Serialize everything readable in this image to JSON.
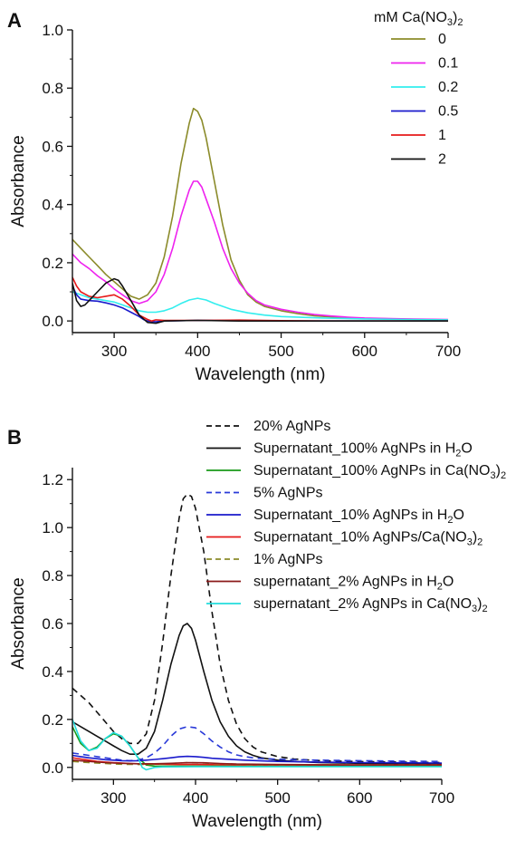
{
  "chart_data": [
    {
      "panel": "A",
      "type": "line",
      "xlabel": "Wavelength (nm)",
      "ylabel": "Absorbance",
      "xlim": [
        250,
        700
      ],
      "ylim": [
        -0.04,
        1.0
      ],
      "xticks": [
        300,
        400,
        500,
        600,
        700
      ],
      "yticks": [
        0.0,
        0.2,
        0.4,
        0.6,
        0.8,
        1.0
      ],
      "grid": false,
      "legend_title": "mM Ca(NO3)2",
      "legend_title_parts": {
        "pre": "mM Ca(NO",
        "sub": "3",
        "mid": ")",
        "sub2": "2",
        "post": ""
      },
      "legend_position": "top-right",
      "series": [
        {
          "name": "0",
          "color": "#8b8b2a",
          "dash": "solid",
          "x": [
            250,
            260,
            270,
            280,
            290,
            300,
            310,
            320,
            330,
            340,
            350,
            360,
            370,
            380,
            390,
            395,
            400,
            405,
            410,
            420,
            430,
            440,
            450,
            460,
            470,
            480,
            500,
            520,
            540,
            560,
            580,
            600,
            650,
            700
          ],
          "y": [
            0.28,
            0.25,
            0.22,
            0.19,
            0.16,
            0.135,
            0.11,
            0.085,
            0.075,
            0.09,
            0.13,
            0.22,
            0.36,
            0.54,
            0.68,
            0.73,
            0.72,
            0.69,
            0.63,
            0.48,
            0.33,
            0.21,
            0.14,
            0.09,
            0.065,
            0.05,
            0.035,
            0.025,
            0.018,
            0.014,
            0.011,
            0.009,
            0.006,
            0.004
          ]
        },
        {
          "name": "0.1",
          "color": "#ee22ee",
          "dash": "solid",
          "x": [
            250,
            260,
            270,
            280,
            290,
            300,
            310,
            320,
            330,
            340,
            350,
            360,
            370,
            380,
            390,
            395,
            400,
            405,
            410,
            420,
            430,
            440,
            450,
            460,
            470,
            480,
            500,
            520,
            540,
            560,
            580,
            600,
            650,
            700
          ],
          "y": [
            0.23,
            0.2,
            0.18,
            0.155,
            0.135,
            0.11,
            0.09,
            0.07,
            0.06,
            0.07,
            0.1,
            0.16,
            0.25,
            0.36,
            0.45,
            0.48,
            0.48,
            0.46,
            0.42,
            0.34,
            0.25,
            0.18,
            0.13,
            0.095,
            0.07,
            0.055,
            0.04,
            0.03,
            0.022,
            0.017,
            0.013,
            0.01,
            0.007,
            0.005
          ]
        },
        {
          "name": "0.2",
          "color": "#33eeee",
          "dash": "solid",
          "x": [
            250,
            260,
            270,
            280,
            290,
            300,
            310,
            320,
            330,
            340,
            350,
            360,
            370,
            380,
            390,
            400,
            410,
            420,
            440,
            460,
            480,
            500,
            550,
            600,
            650,
            700
          ],
          "y": [
            0.1,
            0.09,
            0.08,
            0.075,
            0.07,
            0.065,
            0.055,
            0.045,
            0.035,
            0.03,
            0.03,
            0.035,
            0.045,
            0.06,
            0.072,
            0.078,
            0.072,
            0.06,
            0.04,
            0.028,
            0.02,
            0.015,
            0.01,
            0.007,
            0.005,
            0.004
          ]
        },
        {
          "name": "0.5",
          "color": "#1a1acc",
          "dash": "solid",
          "x": [
            250,
            255,
            260,
            270,
            280,
            290,
            300,
            310,
            320,
            330,
            335,
            340,
            350,
            360,
            400,
            450,
            500,
            550,
            600,
            650,
            700
          ],
          "y": [
            0.12,
            0.09,
            0.075,
            0.07,
            0.068,
            0.062,
            0.055,
            0.045,
            0.03,
            0.015,
            0.005,
            0.0,
            -0.003,
            0.0,
            0.002,
            0.001,
            0.0,
            0.0,
            0.0,
            0.0,
            0.0
          ]
        },
        {
          "name": "1",
          "color": "#e61a1a",
          "dash": "solid",
          "x": [
            250,
            255,
            260,
            270,
            280,
            290,
            300,
            310,
            320,
            330,
            340,
            345,
            350,
            360,
            400,
            450,
            500,
            550,
            600,
            650,
            700
          ],
          "y": [
            0.15,
            0.12,
            0.1,
            0.085,
            0.08,
            0.085,
            0.09,
            0.075,
            0.05,
            0.02,
            0.005,
            0.0,
            0.004,
            0.002,
            0.002,
            0.003,
            0.001,
            0.0,
            0.0,
            0.0,
            0.0
          ]
        },
        {
          "name": "2",
          "color": "#111111",
          "dash": "solid",
          "x": [
            250,
            255,
            260,
            265,
            270,
            280,
            290,
            300,
            305,
            310,
            320,
            330,
            340,
            350,
            360,
            400,
            450,
            500,
            550,
            600,
            650,
            700
          ],
          "y": [
            0.13,
            0.07,
            0.05,
            0.055,
            0.07,
            0.1,
            0.13,
            0.145,
            0.14,
            0.12,
            0.07,
            0.02,
            -0.005,
            -0.008,
            0.0,
            0.002,
            0.0,
            0.0,
            0.0,
            0.0,
            0.0,
            0.0
          ]
        }
      ]
    },
    {
      "panel": "B",
      "type": "line",
      "xlabel": "Wavelength (nm)",
      "ylabel": "Absorbance",
      "xlim": [
        250,
        700
      ],
      "ylim": [
        -0.05,
        1.25
      ],
      "xticks": [
        300,
        400,
        500,
        600,
        700
      ],
      "yticks": [
        0.0,
        0.2,
        0.4,
        0.6,
        0.8,
        1.0,
        1.2
      ],
      "grid": false,
      "legend_position": "top-right",
      "series": [
        {
          "name": "20% AgNPs",
          "label_parts": {
            "pre": "20% AgNPs",
            "sub": "",
            "post": ""
          },
          "color": "#111111",
          "dash": "dashed",
          "x": [
            250,
            260,
            270,
            280,
            290,
            300,
            310,
            320,
            330,
            340,
            350,
            360,
            370,
            380,
            385,
            390,
            395,
            400,
            410,
            420,
            430,
            440,
            450,
            460,
            470,
            480,
            500,
            520,
            540,
            560,
            600,
            650,
            700
          ],
          "y": [
            0.33,
            0.3,
            0.27,
            0.23,
            0.19,
            0.15,
            0.12,
            0.1,
            0.1,
            0.14,
            0.28,
            0.52,
            0.8,
            1.04,
            1.12,
            1.14,
            1.13,
            1.08,
            0.9,
            0.65,
            0.43,
            0.28,
            0.18,
            0.12,
            0.085,
            0.065,
            0.045,
            0.035,
            0.03,
            0.027,
            0.024,
            0.022,
            0.02
          ]
        },
        {
          "name": "Supernatant_100% AgNPs in H2O",
          "label_parts": {
            "pre": "Supernatant_100% AgNPs in H",
            "sub": "2",
            "post": "O"
          },
          "color": "#111111",
          "dash": "solid",
          "x": [
            250,
            260,
            270,
            280,
            290,
            300,
            310,
            320,
            330,
            340,
            350,
            360,
            370,
            380,
            385,
            390,
            395,
            400,
            410,
            420,
            430,
            440,
            450,
            460,
            470,
            480,
            500,
            520,
            550,
            600,
            650,
            700
          ],
          "y": [
            0.19,
            0.17,
            0.15,
            0.13,
            0.11,
            0.09,
            0.07,
            0.055,
            0.055,
            0.08,
            0.15,
            0.28,
            0.43,
            0.55,
            0.59,
            0.6,
            0.58,
            0.53,
            0.4,
            0.28,
            0.19,
            0.13,
            0.09,
            0.065,
            0.05,
            0.04,
            0.03,
            0.025,
            0.02,
            0.017,
            0.015,
            0.014
          ]
        },
        {
          "name": "Supernatant_100% AgNPs in Ca(NO3)2",
          "label_parts": {
            "pre": "Supernatant_100% AgNPs in Ca(NO",
            "sub": "3",
            "mid": ")",
            "sub2": "2",
            "post": ""
          },
          "color": "#1a9a1a",
          "dash": "solid",
          "x": [
            250,
            260,
            270,
            280,
            290,
            300,
            310,
            320,
            330,
            340,
            350,
            400,
            450,
            500,
            550,
            600,
            650,
            700
          ],
          "y": [
            0.17,
            0.1,
            0.07,
            0.085,
            0.12,
            0.14,
            0.13,
            0.09,
            0.04,
            0.01,
            0.005,
            0.005,
            0.005,
            0.005,
            0.005,
            0.005,
            0.005,
            0.005
          ]
        },
        {
          "name": "5% AgNPs",
          "label_parts": {
            "pre": "5% AgNPs",
            "sub": "",
            "post": ""
          },
          "color": "#2a3ad8",
          "dash": "dashed",
          "x": [
            250,
            260,
            270,
            280,
            290,
            300,
            310,
            320,
            330,
            340,
            350,
            360,
            370,
            380,
            390,
            400,
            410,
            420,
            430,
            440,
            450,
            460,
            470,
            480,
            500,
            520,
            550,
            600,
            650,
            700
          ],
          "y": [
            0.06,
            0.055,
            0.05,
            0.045,
            0.04,
            0.035,
            0.03,
            0.028,
            0.03,
            0.04,
            0.06,
            0.09,
            0.13,
            0.16,
            0.17,
            0.165,
            0.14,
            0.11,
            0.085,
            0.065,
            0.052,
            0.045,
            0.04,
            0.037,
            0.034,
            0.032,
            0.03,
            0.028,
            0.026,
            0.025
          ]
        },
        {
          "name": "Supernatant_10% AgNPs in H2O",
          "label_parts": {
            "pre": "Supernatant_10% AgNPs in H",
            "sub": "2",
            "post": "O"
          },
          "color": "#1a1acc",
          "dash": "solid",
          "x": [
            250,
            260,
            270,
            280,
            290,
            300,
            310,
            320,
            330,
            340,
            350,
            360,
            370,
            380,
            390,
            400,
            410,
            420,
            440,
            460,
            480,
            500,
            550,
            600,
            650,
            700
          ],
          "y": [
            0.05,
            0.045,
            0.04,
            0.036,
            0.032,
            0.03,
            0.028,
            0.027,
            0.028,
            0.03,
            0.033,
            0.036,
            0.04,
            0.044,
            0.046,
            0.045,
            0.042,
            0.038,
            0.034,
            0.03,
            0.027,
            0.025,
            0.022,
            0.02,
            0.019,
            0.018
          ]
        },
        {
          "name": "Supernatant_10% AgNPs/Ca(NO3)2",
          "label_parts": {
            "pre": "Supernatant_10% AgNPs/Ca(NO",
            "sub": "3",
            "mid": ")",
            "sub2": "2",
            "post": ""
          },
          "color": "#e61a1a",
          "dash": "solid",
          "x": [
            250,
            260,
            270,
            280,
            290,
            300,
            320,
            340,
            360,
            380,
            400,
            450,
            500,
            550,
            600,
            650,
            700
          ],
          "y": [
            0.04,
            0.035,
            0.03,
            0.025,
            0.022,
            0.02,
            0.016,
            0.014,
            0.013,
            0.012,
            0.012,
            0.011,
            0.01,
            0.01,
            0.01,
            0.01,
            0.01
          ]
        },
        {
          "name": "1% AgNPs",
          "label_parts": {
            "pre": "1% AgNPs",
            "sub": "",
            "post": ""
          },
          "color": "#8b8b2a",
          "dash": "dashed",
          "x": [
            250,
            270,
            290,
            310,
            330,
            350,
            370,
            390,
            410,
            430,
            450,
            500,
            550,
            600,
            650,
            700
          ],
          "y": [
            0.025,
            0.02,
            0.016,
            0.013,
            0.012,
            0.013,
            0.016,
            0.02,
            0.018,
            0.015,
            0.013,
            0.011,
            0.01,
            0.01,
            0.01,
            0.01
          ]
        },
        {
          "name": "supernatant_2% AgNPs in H2O",
          "label_parts": {
            "pre": "supernatant_2% AgNPs in H",
            "sub": "2",
            "post": "O"
          },
          "color": "#8b1a1a",
          "dash": "solid",
          "x": [
            250,
            270,
            290,
            310,
            330,
            350,
            370,
            390,
            410,
            430,
            450,
            500,
            550,
            600,
            650,
            700
          ],
          "y": [
            0.03,
            0.025,
            0.02,
            0.017,
            0.015,
            0.015,
            0.017,
            0.02,
            0.019,
            0.016,
            0.014,
            0.012,
            0.011,
            0.01,
            0.01,
            0.01
          ]
        },
        {
          "name": "supernatant_2% AgNPs in Ca(NO3)2",
          "label_parts": {
            "pre": "supernatant_2% AgNPs in Ca(NO",
            "sub": "3",
            "mid": ")",
            "sub2": "2",
            "post": ""
          },
          "color": "#22dddd",
          "dash": "solid",
          "x": [
            250,
            260,
            270,
            280,
            290,
            300,
            310,
            320,
            330,
            335,
            340,
            345,
            350,
            360,
            400,
            450,
            500,
            550,
            600,
            650,
            700
          ],
          "y": [
            0.2,
            0.11,
            0.07,
            0.08,
            0.12,
            0.145,
            0.13,
            0.09,
            0.04,
            0.0,
            -0.01,
            -0.005,
            0.0,
            0.002,
            0.003,
            0.003,
            0.003,
            0.003,
            0.003,
            0.003,
            0.003
          ]
        }
      ]
    }
  ]
}
